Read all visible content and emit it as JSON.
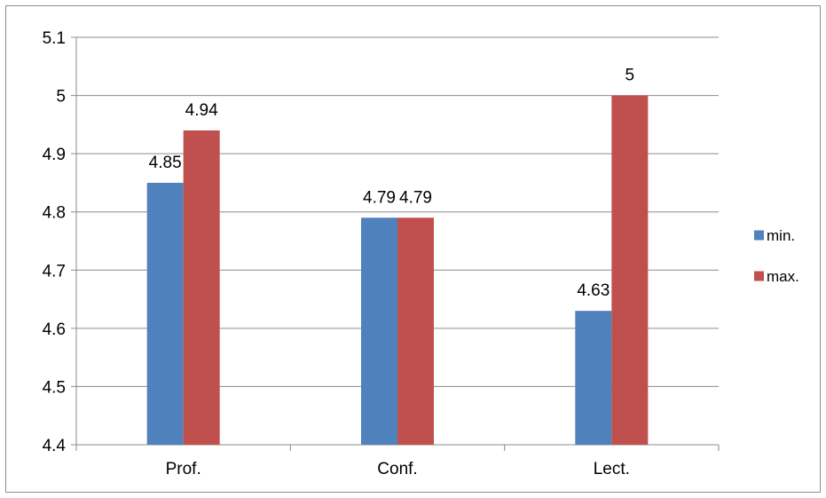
{
  "chart_data": {
    "type": "bar",
    "title": "",
    "xlabel": "",
    "ylabel": "",
    "categories": [
      "Prof.",
      "Conf.",
      "Lect."
    ],
    "series": [
      {
        "name": "min.",
        "values": [
          4.85,
          4.79,
          4.63
        ],
        "color": "#4f81bd"
      },
      {
        "name": "max.",
        "values": [
          4.94,
          4.79,
          5
        ],
        "color": "#c0504d"
      }
    ],
    "data_labels": [
      [
        "4.85",
        "4.79",
        "4.63"
      ],
      [
        "4.94",
        "4.79",
        "5"
      ]
    ],
    "ylim": [
      4.4,
      5.1
    ],
    "yticks": [
      "4.4",
      "4.5",
      "4.6",
      "4.7",
      "4.8",
      "4.9",
      "5",
      "5.1"
    ],
    "grid": true,
    "legend_position": "right"
  }
}
